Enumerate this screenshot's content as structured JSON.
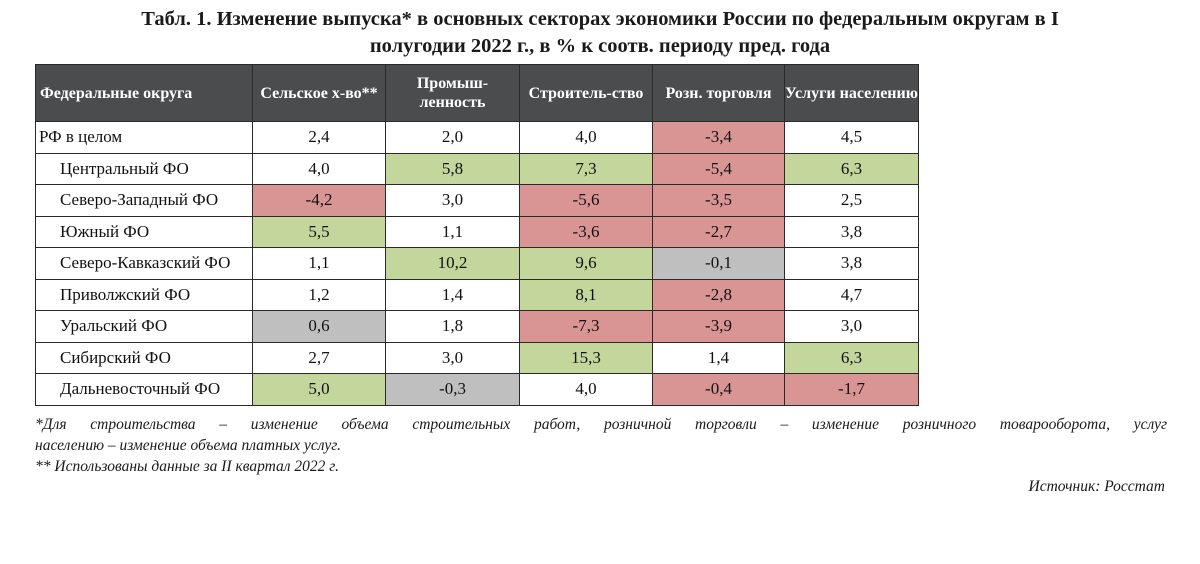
{
  "title_line1": "Табл. 1.  Изменение выпуска* в основных секторах экономики России по федеральным округам в I",
  "title_line2": "полугодии 2022 г., в % к соотв. периоду пред. года",
  "table": {
    "headers": [
      "Федеральные округа",
      "Сельское х-во**",
      "Промыш-ленность",
      "Строитель-ство",
      "Розн. торговля",
      "Услуги населению"
    ],
    "rows": [
      {
        "name": "РФ в целом",
        "values": [
          "2,4",
          "2,0",
          "4,0",
          "-3,4",
          "4,5"
        ],
        "colors": [
          "",
          "",
          "",
          "red",
          ""
        ]
      },
      {
        "name": "Центральный ФО",
        "values": [
          "4,0",
          "5,8",
          "7,3",
          "-5,4",
          "6,3"
        ],
        "colors": [
          "",
          "green",
          "green",
          "red",
          "green"
        ]
      },
      {
        "name": "Северо-Западный ФО",
        "values": [
          "-4,2",
          "3,0",
          "-5,6",
          "-3,5",
          "2,5"
        ],
        "colors": [
          "red",
          "",
          "red",
          "red",
          ""
        ]
      },
      {
        "name": "Южный ФО",
        "values": [
          "5,5",
          "1,1",
          "-3,6",
          "-2,7",
          "3,8"
        ],
        "colors": [
          "green",
          "",
          "red",
          "red",
          ""
        ]
      },
      {
        "name": "Северо-Кавказский ФО",
        "values": [
          "1,1",
          "10,2",
          "9,6",
          "-0,1",
          "3,8"
        ],
        "colors": [
          "",
          "green",
          "green",
          "gray",
          ""
        ]
      },
      {
        "name": "Приволжский ФО",
        "values": [
          "1,2",
          "1,4",
          "8,1",
          "-2,8",
          "4,7"
        ],
        "colors": [
          "",
          "",
          "green",
          "red",
          ""
        ]
      },
      {
        "name": "Уральский ФО",
        "values": [
          "0,6",
          "1,8",
          "-7,3",
          "-3,9",
          "3,0"
        ],
        "colors": [
          "gray",
          "",
          "red",
          "red",
          ""
        ]
      },
      {
        "name": "Сибирский ФО",
        "values": [
          "2,7",
          "3,0",
          "15,3",
          "1,4",
          "6,3"
        ],
        "colors": [
          "",
          "",
          "green",
          "",
          "green"
        ]
      },
      {
        "name": "Дальневосточный ФО",
        "values": [
          "5,0",
          "-0,3",
          "4,0",
          "-0,4",
          "-1,7"
        ],
        "colors": [
          "green",
          "gray",
          "",
          "red",
          "red"
        ]
      }
    ]
  },
  "footnote1_line1": "*Для строительства – изменение объема строительных работ, розничной торговли – изменение розничного товарооборота, услуг",
  "footnote1_line2": "населению – изменение объема платных услуг.",
  "footnote2": "** Использованы данные за II квартал 2022 г.",
  "source": "Источник: Росстат",
  "colors": {
    "red": "#d99594",
    "green": "#c3d69b",
    "gray": "#bfbfbf",
    "header": "#4b4c4e"
  }
}
